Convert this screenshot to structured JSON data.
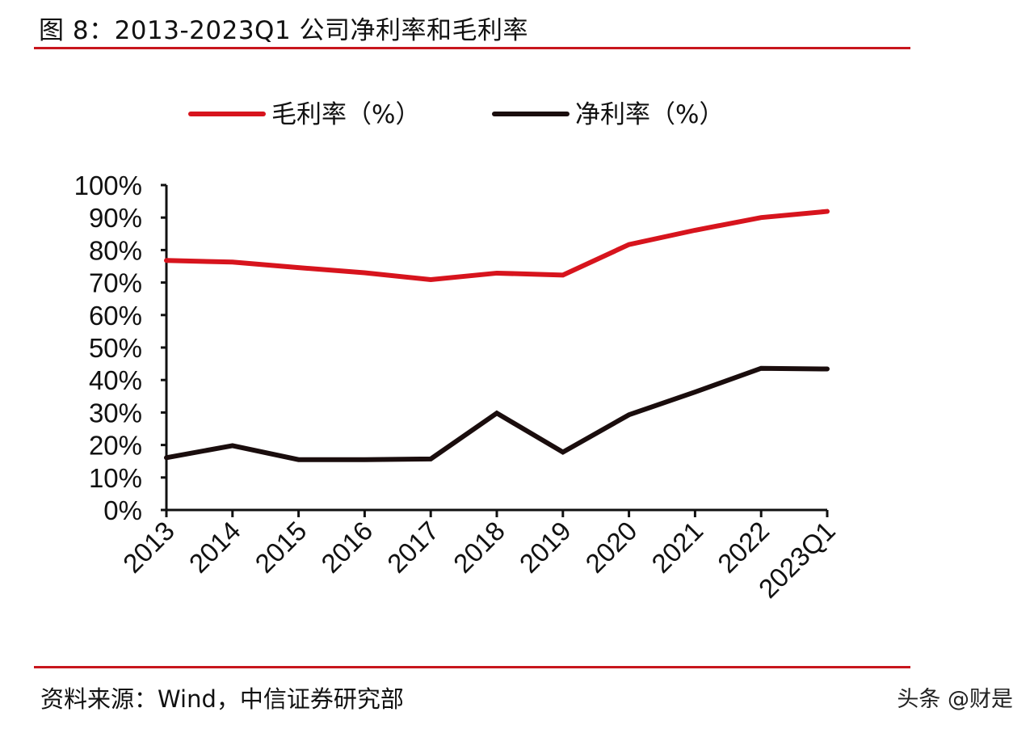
{
  "header": {
    "title": "图 8：2013-2023Q1 公司净利率和毛利率"
  },
  "footer": {
    "source": "资料来源：Wind，中信证券研究部",
    "watermark": "头条 @财是"
  },
  "chart_data": {
    "type": "line",
    "title": "图 8：2013-2023Q1 公司净利率和毛利率",
    "categories": [
      "2013",
      "2014",
      "2015",
      "2016",
      "2017",
      "2018",
      "2019",
      "2020",
      "2021",
      "2022",
      "2023Q1"
    ],
    "ylim": [
      0,
      100
    ],
    "yticks": [
      "0%",
      "10%",
      "20%",
      "30%",
      "40%",
      "50%",
      "60%",
      "70%",
      "80%",
      "90%",
      "100%"
    ],
    "grid": false,
    "legend_position": "top",
    "series": [
      {
        "name": "毛利率（%）",
        "color": "#d7141d",
        "values": [
          76.8,
          76.3,
          74.6,
          73.0,
          70.9,
          72.9,
          72.3,
          81.7,
          86.1,
          90.0,
          91.9
        ]
      },
      {
        "name": "净利率（%）",
        "color": "#1a0d0d",
        "values": [
          16.1,
          19.8,
          15.5,
          15.5,
          15.7,
          29.8,
          17.8,
          29.3,
          36.3,
          43.6,
          43.4
        ]
      }
    ]
  }
}
